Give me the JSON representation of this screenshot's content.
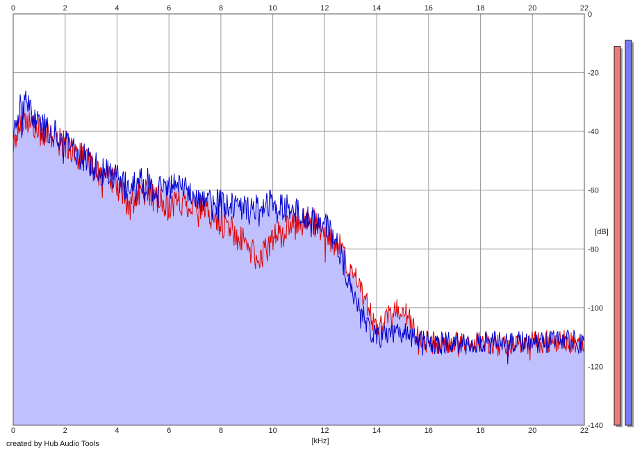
{
  "credit": "created by Hub Audio Tools",
  "chart_data": {
    "type": "area",
    "x_unit": "[kHz]",
    "y_unit": "[dB]",
    "xlim": [
      0,
      22
    ],
    "ylim": [
      -140,
      0
    ],
    "x_ticks": [
      0,
      2,
      4,
      6,
      8,
      10,
      12,
      14,
      16,
      18,
      20,
      22
    ],
    "y_ticks": [
      0,
      -20,
      -40,
      -60,
      -80,
      -100,
      -120,
      -140
    ],
    "grid": true,
    "background": "#ffffff",
    "grid_color": "#9a9a9a",
    "fill_color": "#c0c0ff",
    "series": [
      {
        "color": "#e00000",
        "x": [
          0,
          0.25,
          0.5,
          0.75,
          1,
          1.5,
          2,
          2.5,
          3,
          3.5,
          4,
          4.5,
          5,
          5.5,
          6,
          6.5,
          7,
          7.5,
          8,
          8.5,
          9,
          9.5,
          10,
          10.5,
          11,
          11.5,
          12,
          12.5,
          13,
          13.25,
          13.5,
          14,
          14.5,
          15,
          15.5,
          16,
          17,
          18,
          19,
          20,
          21,
          22
        ],
        "values": [
          -45,
          -38,
          -36,
          -38,
          -40,
          -42,
          -44,
          -48,
          -52,
          -55,
          -58,
          -66,
          -60,
          -63,
          -65,
          -64,
          -65,
          -68,
          -71,
          -74,
          -79,
          -84,
          -76,
          -74,
          -71,
          -70,
          -75,
          -78,
          -89,
          -90,
          -96,
          -108,
          -102,
          -100,
          -108,
          -112,
          -112,
          -112,
          -112,
          -112,
          -111,
          -113
        ]
      },
      {
        "color": "#0000cc",
        "x": [
          0,
          0.25,
          0.5,
          0.75,
          1,
          1.5,
          2,
          2.5,
          3,
          3.5,
          4,
          4.5,
          5,
          5.5,
          6,
          6.5,
          7,
          7.5,
          8,
          8.5,
          9,
          9.5,
          10,
          10.5,
          11,
          11.5,
          12,
          12.5,
          13,
          13.25,
          13.5,
          14,
          14.5,
          15,
          15.5,
          16,
          17,
          18,
          19,
          20,
          21,
          22
        ],
        "values": [
          -42,
          -32,
          -31,
          -34,
          -38,
          -40,
          -43,
          -47,
          -51,
          -54,
          -56,
          -60,
          -56,
          -60,
          -58,
          -59,
          -62,
          -63,
          -64,
          -66,
          -67,
          -66,
          -64,
          -66,
          -68,
          -70,
          -72,
          -78,
          -93,
          -98,
          -103,
          -110,
          -109,
          -108,
          -111,
          -112,
          -112,
          -112,
          -112,
          -112,
          -111,
          -112
        ]
      }
    ],
    "level_bars": [
      {
        "color": "#f07a7a",
        "value": -11
      },
      {
        "color": "#7a7af0",
        "value": -9
      }
    ]
  }
}
